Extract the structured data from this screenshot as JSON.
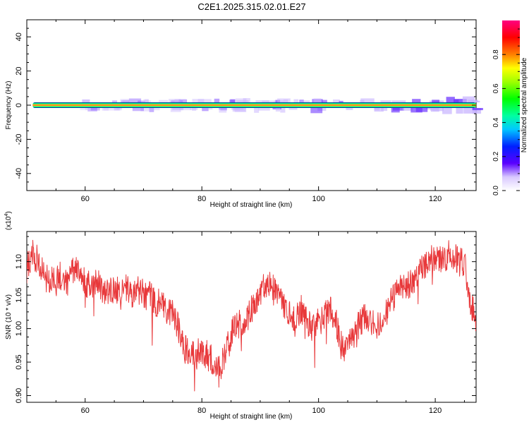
{
  "title": "C2E1.2025.315.02.01.E27",
  "chart_data": [
    {
      "type": "heatmap",
      "xlabel": "Height of straight line (km)",
      "ylabel": "Frequency (Hz)",
      "xlim": [
        50,
        127
      ],
      "ylim": [
        -50,
        50
      ],
      "x_ticks": [
        60,
        80,
        100,
        120
      ],
      "y_ticks": [
        40,
        20,
        0,
        -20,
        -40
      ],
      "x_tick_labels": [
        "60",
        "80",
        "100",
        "120"
      ],
      "y_tick_labels": [
        "40",
        "20",
        "0",
        "-20",
        "-40"
      ],
      "band": {
        "center_hz": 0,
        "start_km": 51,
        "end_km": 127
      },
      "colorbar": {
        "label": "Normalized spectral amplitude",
        "range": [
          0,
          1
        ],
        "tick_values": [
          0.0,
          0.2,
          0.4,
          0.6,
          0.8
        ],
        "tick_labels": [
          "0.0",
          "0.2",
          "0.4",
          "0.6",
          "0.8"
        ]
      }
    },
    {
      "type": "line",
      "xlabel": "Height of straight line (km)",
      "ylabel": "SNR (10 * v/v)",
      "scale_label": "(x10",
      "scale_exponent": "4",
      "scale_close": ")",
      "xlim": [
        50,
        127
      ],
      "ylim": [
        0.89,
        1.145
      ],
      "x_ticks": [
        60,
        80,
        100,
        120
      ],
      "y_ticks": [
        0.9,
        0.95,
        1.0,
        1.05,
        1.1
      ],
      "x_tick_labels": [
        "60",
        "80",
        "100",
        "120"
      ],
      "y_tick_labels": [
        "0.90",
        "0.95",
        "1.00",
        "1.05",
        "1.10"
      ],
      "line_color": "#e8383a",
      "series": [
        {
          "name": "SNR",
          "x": [
            50,
            51,
            52,
            53,
            54,
            55,
            56,
            57,
            58,
            59,
            60,
            61,
            62,
            63,
            64,
            65,
            66,
            67,
            68,
            69,
            70,
            71,
            72,
            73,
            74,
            75,
            76,
            77,
            78,
            79,
            80,
            81,
            82,
            83,
            84,
            85,
            86,
            87,
            88,
            89,
            90,
            91,
            92,
            93,
            94,
            95,
            96,
            97,
            98,
            99,
            100,
            101,
            102,
            103,
            104,
            105,
            106,
            107,
            108,
            109,
            110,
            111,
            112,
            113,
            114,
            115,
            116,
            117,
            118,
            119,
            120,
            121,
            122,
            123,
            124,
            125,
            126,
            127
          ],
          "values": [
            1.09,
            1.11,
            1.1,
            1.08,
            1.07,
            1.07,
            1.08,
            1.07,
            1.09,
            1.08,
            1.07,
            1.06,
            1.07,
            1.06,
            1.05,
            1.06,
            1.05,
            1.06,
            1.05,
            1.06,
            1.05,
            1.05,
            1.04,
            1.04,
            1.03,
            1.02,
            1.0,
            0.97,
            0.97,
            0.96,
            0.97,
            0.96,
            0.95,
            0.94,
            0.96,
            0.99,
            1.01,
            1.0,
            1.02,
            1.04,
            1.05,
            1.07,
            1.06,
            1.05,
            1.03,
            1.02,
            1.01,
            1.03,
            1.01,
            1.0,
            1.01,
            1.02,
            1.03,
            1.01,
            0.97,
            0.97,
            0.99,
            1.01,
            1.02,
            1.01,
            1.0,
            1.02,
            1.03,
            1.05,
            1.06,
            1.06,
            1.07,
            1.08,
            1.09,
            1.1,
            1.11,
            1.1,
            1.11,
            1.11,
            1.1,
            1.1,
            1.04,
            1.01
          ]
        }
      ]
    }
  ]
}
